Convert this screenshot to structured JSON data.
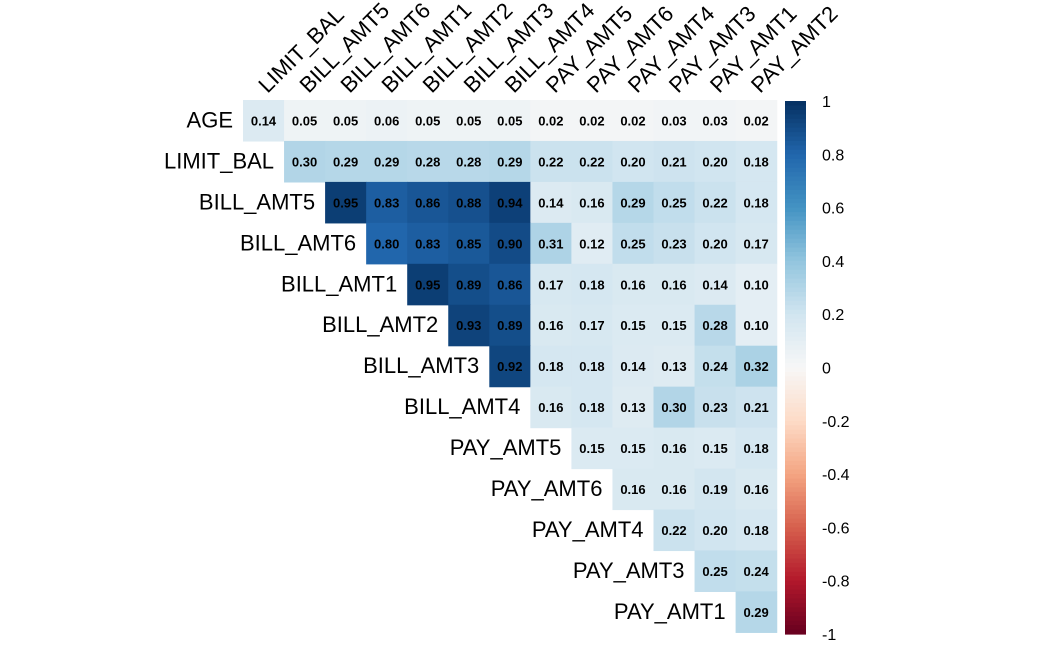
{
  "chart_data": {
    "type": "heatmap",
    "title": "",
    "variables": [
      "AGE",
      "LIMIT_BAL",
      "BILL_AMT5",
      "BILL_AMT6",
      "BILL_AMT1",
      "BILL_AMT2",
      "BILL_AMT3",
      "BILL_AMT4",
      "PAY_AMT5",
      "PAY_AMT6",
      "PAY_AMT4",
      "PAY_AMT3",
      "PAY_AMT1",
      "PAY_AMT2"
    ],
    "row_labels": [
      "AGE",
      "LIMIT_BAL",
      "BILL_AMT5",
      "BILL_AMT6",
      "BILL_AMT1",
      "BILL_AMT2",
      "BILL_AMT3",
      "BILL_AMT4",
      "PAY_AMT5",
      "PAY_AMT6",
      "PAY_AMT4",
      "PAY_AMT3",
      "PAY_AMT1"
    ],
    "column_labels": [
      "LIMIT_BAL",
      "BILL_AMT5",
      "BILL_AMT6",
      "BILL_AMT1",
      "BILL_AMT2",
      "BILL_AMT3",
      "BILL_AMT4",
      "PAY_AMT5",
      "PAY_AMT6",
      "PAY_AMT4",
      "PAY_AMT3",
      "PAY_AMT1",
      "PAY_AMT2"
    ],
    "matrix_layout": "upper triangle; row i contains columns i..12",
    "rows": [
      [
        0.14,
        0.05,
        0.05,
        0.06,
        0.05,
        0.05,
        0.05,
        0.02,
        0.02,
        0.02,
        0.03,
        0.03,
        0.02
      ],
      [
        0.3,
        0.29,
        0.29,
        0.28,
        0.28,
        0.29,
        0.22,
        0.22,
        0.2,
        0.21,
        0.2,
        0.18
      ],
      [
        0.95,
        0.83,
        0.86,
        0.88,
        0.94,
        0.14,
        0.16,
        0.29,
        0.25,
        0.22,
        0.18
      ],
      [
        0.8,
        0.83,
        0.85,
        0.9,
        0.31,
        0.12,
        0.25,
        0.23,
        0.2,
        0.17
      ],
      [
        0.95,
        0.89,
        0.86,
        0.17,
        0.18,
        0.16,
        0.16,
        0.14,
        0.1
      ],
      [
        0.93,
        0.89,
        0.16,
        0.17,
        0.15,
        0.15,
        0.28,
        0.1
      ],
      [
        0.92,
        0.18,
        0.18,
        0.14,
        0.13,
        0.24,
        0.32
      ],
      [
        0.16,
        0.18,
        0.13,
        0.3,
        0.23,
        0.21
      ],
      [
        0.15,
        0.15,
        0.16,
        0.15,
        0.18
      ],
      [
        0.16,
        0.16,
        0.19,
        0.16
      ],
      [
        0.22,
        0.2,
        0.18
      ],
      [
        0.25,
        0.24
      ],
      [
        0.29
      ]
    ],
    "value_range": [
      -1,
      1
    ],
    "colorbar": {
      "ticks": [
        "1",
        "0.8",
        "0.6",
        "0.4",
        "0.2",
        "0",
        "-0.2",
        "-0.4",
        "-0.6",
        "-0.8",
        "-1"
      ],
      "tick_values": [
        1,
        0.8,
        0.6,
        0.4,
        0.2,
        0,
        -0.2,
        -0.4,
        -0.6,
        -0.8,
        -1
      ],
      "placement": "right"
    },
    "colormap": {
      "negative_end": "#67001F",
      "midpoint": "#F7F7F7",
      "positive_end": "#053061"
    },
    "grid": false
  }
}
